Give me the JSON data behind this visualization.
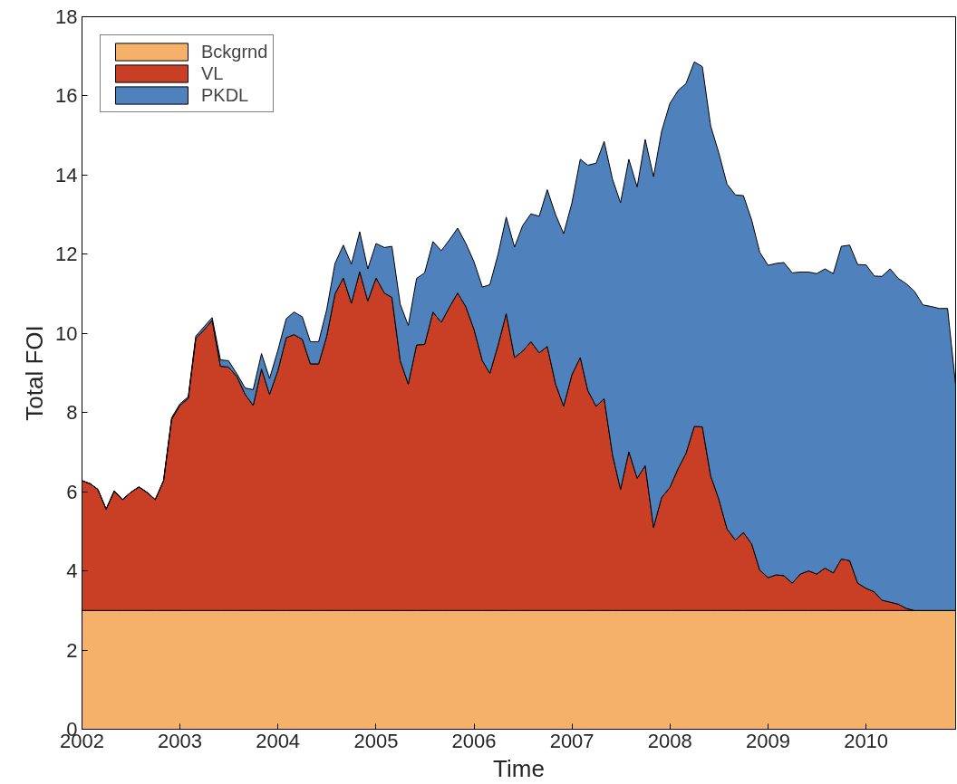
{
  "chart_data": {
    "type": "area",
    "stacked": true,
    "xlabel": "Time",
    "ylabel": "Total FOI",
    "x": [
      "2002-01",
      "2002-02",
      "2002-03",
      "2002-04",
      "2002-05",
      "2002-06",
      "2002-07",
      "2002-08",
      "2002-09",
      "2002-10",
      "2002-11",
      "2002-12",
      "2003-01",
      "2003-02",
      "2003-03",
      "2003-04",
      "2003-05",
      "2003-06",
      "2003-07",
      "2003-08",
      "2003-09",
      "2003-10",
      "2003-11",
      "2003-12",
      "2004-01",
      "2004-02",
      "2004-03",
      "2004-04",
      "2004-05",
      "2004-06",
      "2004-07",
      "2004-08",
      "2004-09",
      "2004-10",
      "2004-11",
      "2004-12",
      "2005-01",
      "2005-02",
      "2005-03",
      "2005-04",
      "2005-05",
      "2005-06",
      "2005-07",
      "2005-08",
      "2005-09",
      "2005-10",
      "2005-11",
      "2005-12",
      "2006-01",
      "2006-02",
      "2006-03",
      "2006-04",
      "2006-05",
      "2006-06",
      "2006-07",
      "2006-08",
      "2006-09",
      "2006-10",
      "2006-11",
      "2006-12",
      "2007-01",
      "2007-02",
      "2007-03",
      "2007-04",
      "2007-05",
      "2007-06",
      "2007-07",
      "2007-08",
      "2007-09",
      "2007-10",
      "2007-11",
      "2007-12",
      "2008-01",
      "2008-02",
      "2008-03",
      "2008-04",
      "2008-05",
      "2008-06",
      "2008-07",
      "2008-08",
      "2008-09",
      "2008-10",
      "2008-11",
      "2008-12",
      "2009-01",
      "2009-02",
      "2009-03",
      "2009-04",
      "2009-05",
      "2009-06",
      "2009-07",
      "2009-08",
      "2009-09",
      "2009-10",
      "2009-11",
      "2009-12",
      "2010-01",
      "2010-02",
      "2010-03",
      "2010-04",
      "2010-05",
      "2010-06",
      "2010-07",
      "2010-08",
      "2010-09",
      "2010-10",
      "2010-11",
      "2010-12"
    ],
    "series": [
      {
        "name": "Bckgrnd",
        "color": "#f5b06a",
        "values": [
          3,
          3,
          3,
          3,
          3,
          3,
          3,
          3,
          3,
          3,
          3,
          3,
          3,
          3,
          3,
          3,
          3,
          3,
          3,
          3,
          3,
          3,
          3,
          3,
          3,
          3,
          3,
          3,
          3,
          3,
          3,
          3,
          3,
          3,
          3,
          3,
          3,
          3,
          3,
          3,
          3,
          3,
          3,
          3,
          3,
          3,
          3,
          3,
          3,
          3,
          3,
          3,
          3,
          3,
          3,
          3,
          3,
          3,
          3,
          3,
          3,
          3,
          3,
          3,
          3,
          3,
          3,
          3,
          3,
          3,
          3,
          3,
          3,
          3,
          3,
          3,
          3,
          3,
          3,
          3,
          3,
          3,
          3,
          3,
          3,
          3,
          3,
          3,
          3,
          3,
          3,
          3,
          3,
          3,
          3,
          3,
          3,
          3,
          3,
          3,
          3,
          3,
          3,
          3,
          3,
          3,
          3,
          3
        ]
      },
      {
        "name": "VL",
        "color": "#c93f25",
        "values": [
          3.28,
          3.2,
          3.06,
          2.56,
          3.02,
          2.8,
          2.98,
          3.12,
          2.98,
          2.8,
          3.28,
          4.83,
          5.18,
          5.36,
          6.87,
          7.09,
          7.33,
          6.17,
          6.15,
          5.91,
          5.46,
          5.18,
          6.1,
          5.46,
          6.06,
          6.89,
          6.97,
          6.85,
          6.23,
          6.23,
          6.93,
          8.0,
          8.4,
          7.76,
          8.56,
          7.82,
          8.4,
          8.02,
          7.91,
          6.31,
          5.72,
          6.71,
          6.72,
          7.54,
          7.28,
          7.66,
          8.02,
          7.68,
          7.1,
          6.31,
          5.99,
          6.71,
          7.5,
          6.39,
          6.55,
          6.79,
          6.51,
          6.67,
          5.72,
          5.16,
          5.96,
          6.39,
          5.56,
          5.16,
          5.35,
          3.94,
          3.06,
          4.01,
          3.34,
          3.66,
          2.1,
          2.85,
          3.11,
          3.59,
          3.97,
          4.65,
          4.64,
          3.4,
          2.82,
          2.06,
          1.78,
          1.97,
          1.68,
          1.02,
          0.83,
          0.9,
          0.88,
          0.69,
          0.92,
          1.0,
          0.92,
          1.07,
          0.95,
          1.3,
          1.26,
          0.69,
          0.56,
          0.47,
          0.26,
          0.21,
          0.16,
          0.05,
          0,
          0,
          0,
          0,
          0,
          0
        ]
      },
      {
        "name": "PKDL",
        "color": "#4f81bd",
        "values": [
          0,
          0,
          0,
          0,
          0,
          0,
          0,
          0,
          0,
          0,
          0,
          0.04,
          0.04,
          0.04,
          0.06,
          0.08,
          0.07,
          0.16,
          0.16,
          0.07,
          0.16,
          0.4,
          0.39,
          0.4,
          0.51,
          0.48,
          0.57,
          0.57,
          0.56,
          0.56,
          0.67,
          0.77,
          0.83,
          0.99,
          1.01,
          0.81,
          0.87,
          1.15,
          1.29,
          1.43,
          1.48,
          1.68,
          1.81,
          1.78,
          1.81,
          1.7,
          1.64,
          1.6,
          1.71,
          1.86,
          2.24,
          2.3,
          2.44,
          2.79,
          3.17,
          3.23,
          3.45,
          3.96,
          4.28,
          4.36,
          4.34,
          5.01,
          5.69,
          6.14,
          6.5,
          6.96,
          7.24,
          7.39,
          7.36,
          8.24,
          8.86,
          9.25,
          9.7,
          9.55,
          9.34,
          9.21,
          9.1,
          8.84,
          8.75,
          8.71,
          8.72,
          8.51,
          8.18,
          8.03,
          7.89,
          7.87,
          7.91,
          7.84,
          7.63,
          7.55,
          7.59,
          7.56,
          7.56,
          7.9,
          7.97,
          8.05,
          8.17,
          7.98,
          8.18,
          8.42,
          8.23,
          8.2,
          8.06,
          7.72,
          7.68,
          7.63,
          7.63,
          5.7
        ]
      }
    ],
    "xlim": [
      "2002-01",
      "2010-12"
    ],
    "xticks": [
      "2002",
      "2003",
      "2004",
      "2005",
      "2006",
      "2007",
      "2008",
      "2009",
      "2010"
    ],
    "ylim": [
      0,
      18
    ],
    "yticks": [
      0,
      2,
      4,
      6,
      8,
      10,
      12,
      14,
      16,
      18
    ],
    "grid": false,
    "legend": "top left"
  }
}
